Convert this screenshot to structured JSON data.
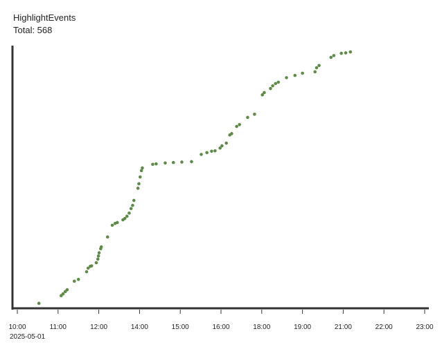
{
  "chart_data": {
    "type": "scatter",
    "title": "HighlightEvents",
    "subtitle": "Total: 568",
    "x_sublabel": "2025-05-01",
    "color": "#5f8a4a",
    "x": [
      10.69,
      11.4,
      11.46,
      11.53,
      11.59,
      11.82,
      11.95,
      12.21,
      12.26,
      12.33,
      12.37,
      12.52,
      12.57,
      12.59,
      12.61,
      12.66,
      12.68,
      12.88,
      13.03,
      13.12,
      13.19,
      13.37,
      13.43,
      13.5,
      13.57,
      13.63,
      13.68,
      13.72,
      13.85,
      13.88,
      13.92,
      13.96,
      13.99,
      14.32,
      14.43,
      14.72,
      14.98,
      15.25,
      15.56,
      15.87,
      16.05,
      16.2,
      16.31,
      16.47,
      16.53,
      16.67,
      16.78,
      16.84,
      17.0,
      17.09,
      17.35,
      17.57,
      17.82,
      17.88,
      18.08,
      18.15,
      18.24,
      18.33,
      18.59,
      18.86,
      19.1,
      19.5,
      19.55,
      19.63,
      20.01,
      20.1,
      20.34,
      20.48,
      20.63
    ],
    "values": [
      11,
      28,
      32,
      37,
      41,
      60,
      64,
      81,
      89,
      93,
      94,
      101,
      109,
      116,
      123,
      132,
      136,
      158,
      184,
      188,
      190,
      196,
      199,
      204,
      211,
      221,
      228,
      239,
      266,
      276,
      291,
      305,
      311,
      319,
      320,
      322,
      323,
      324,
      325,
      341,
      345,
      348,
      349,
      355,
      360,
      366,
      384,
      387,
      403,
      407,
      423,
      430,
      473,
      478,
      487,
      493,
      498,
      501,
      511,
      516,
      521,
      524,
      533,
      538,
      556,
      560,
      565,
      566,
      568
    ],
    "xlim": [
      10,
      23
    ],
    "xticks": [
      {
        "value": 10,
        "label": "10:00"
      },
      {
        "value": 11.3,
        "label": "11:00"
      },
      {
        "value": 12.6,
        "label": "12:00"
      },
      {
        "value": 13.9,
        "label": "14:00"
      },
      {
        "value": 15.2,
        "label": "15:00"
      },
      {
        "value": 16.5,
        "label": "16:00"
      },
      {
        "value": 17.8,
        "label": "18:00"
      },
      {
        "value": 19.1,
        "label": "19:00"
      },
      {
        "value": 20.4,
        "label": "21:00"
      },
      {
        "value": 21.7,
        "label": "22:00"
      },
      {
        "value": 23,
        "label": "23:00"
      }
    ],
    "ylim": [
      0,
      579
    ]
  }
}
